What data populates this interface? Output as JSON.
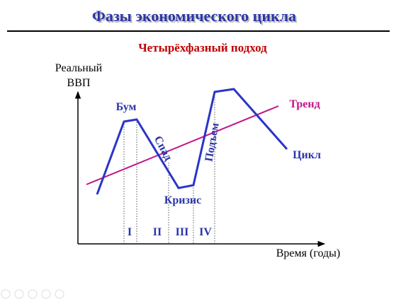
{
  "header": {
    "title": "Фазы экономического цикла",
    "subtitle": "Четырёхфазный подход"
  },
  "axes": {
    "y_label": [
      "Реальный",
      "ВВП"
    ],
    "x_label": "Время (годы)"
  },
  "labels": {
    "boom": "Бум",
    "recession": "Спад",
    "crisis": "Кризис",
    "recovery": "Подъем",
    "trend": "Тренд",
    "cycle": "Цикл"
  },
  "phases": [
    "I",
    "II",
    "III",
    "IV"
  ]
}
